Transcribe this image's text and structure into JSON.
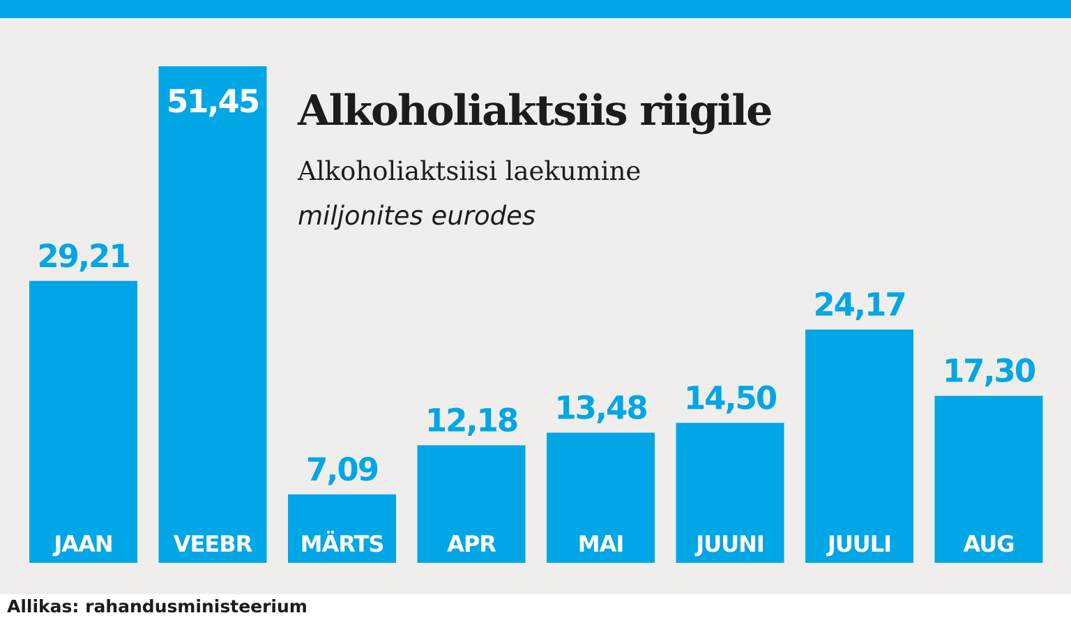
{
  "chart_data": {
    "type": "bar",
    "title": "Alkoholiaktsiis riigile",
    "subtitle": "Alkoholiaktsiisi laekumine",
    "unit_label": "miljonites eurodes",
    "categories": [
      "JAAN",
      "VEEBR",
      "MÄRTS",
      "APR",
      "MAI",
      "JUUNI",
      "JUULI",
      "AUG"
    ],
    "values": [
      29.21,
      51.45,
      7.09,
      12.18,
      13.48,
      14.5,
      24.17,
      17.3
    ],
    "value_labels": [
      "29,21",
      "51,45",
      "7,09",
      "12,18",
      "13,48",
      "14,50",
      "24,17",
      "17,30"
    ],
    "ylim": [
      0,
      51.45
    ],
    "grid": false,
    "legend": "none",
    "colors": {
      "bar": "#00a6e6",
      "label": "#00a6e6",
      "label_inside": "#ffffff",
      "background": "#efeeec",
      "accent_top": "#00a6e6"
    }
  },
  "source": "Allikas: rahandusministeerium"
}
